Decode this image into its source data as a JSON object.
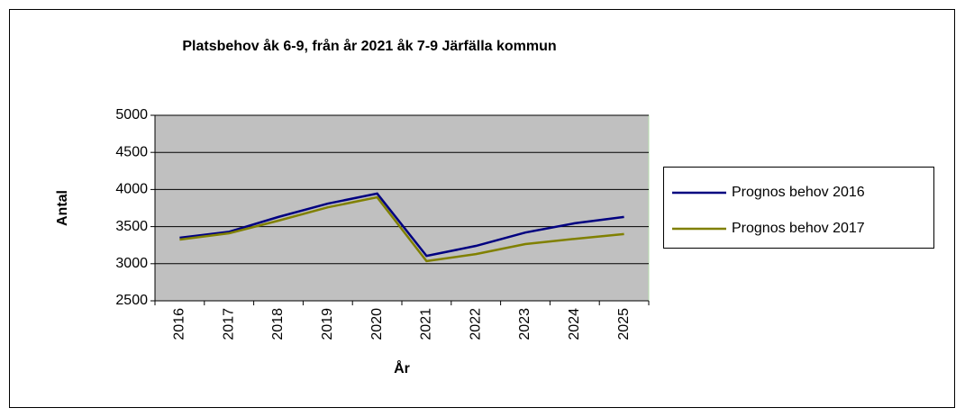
{
  "chart_data": {
    "type": "line",
    "title": "Platsbehov  åk 6-9, från år 2021 åk 7-9 Järfälla kommun",
    "x_label": "År",
    "y_label": "Antal",
    "categories": [
      "2016",
      "2017",
      "2018",
      "2019",
      "2020",
      "2021",
      "2022",
      "2023",
      "2024",
      "2025"
    ],
    "series": [
      {
        "name": "Prognos behov 2016",
        "color": "#000080",
        "values": [
          3350,
          3430,
          3630,
          3810,
          3945,
          3105,
          3240,
          3420,
          3545,
          3630
        ]
      },
      {
        "name": "Prognos behov 2017",
        "color": "#808000",
        "values": [
          3325,
          3410,
          3580,
          3760,
          3895,
          3035,
          3130,
          3265,
          3335,
          3400
        ]
      }
    ],
    "ylim": [
      2500,
      5000
    ],
    "yticks": [
      2500,
      3000,
      3500,
      4000,
      4500,
      5000
    ],
    "grid": true,
    "legend": "right"
  }
}
